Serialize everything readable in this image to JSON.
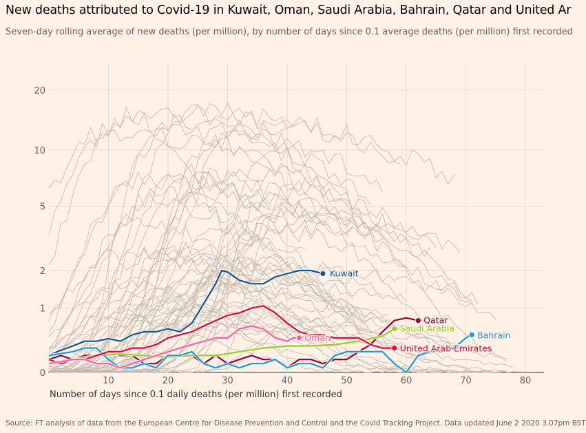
{
  "title": "New deaths attributed to Covid-19 in Kuwait, Oman, Saudi Arabia, Bahrain, Qatar and United Ar",
  "subtitle": "Seven-day rolling average of new deaths (per million), by number of days since 0.1 average deaths (per million) first recorded",
  "source": "Source: FT analysis of data from the European Centre for Disease Prevention and Control and the Covid Tracking Project. Data updated June 2 2020 3.07pm BST",
  "chart_data": {
    "type": "line",
    "title": "New deaths attributed to Covid-19 in Kuwait, Oman, Saudi Arabia, Bahrain, Qatar and United Ar",
    "xlabel": "Number of days since 0.1 daily deaths (per million) first recorded",
    "ylabel": "",
    "xlim": [
      0,
      84
    ],
    "ylim": [
      0,
      27
    ],
    "yscale": "log(1+y)",
    "x_ticks": [
      10,
      20,
      30,
      40,
      50,
      60,
      70,
      80
    ],
    "y_ticks": [
      0,
      1,
      2,
      5,
      10,
      20
    ],
    "y_tick_labels": [
      "0",
      "1",
      "2",
      "5",
      "10",
      "20"
    ],
    "grid": true,
    "legend": "inline labels at line ends",
    "colors": {
      "background": "#fff1e5",
      "other_countries": "#c0b9b0",
      "Kuwait": "#0f5499",
      "Qatar": "#96002f",
      "Saudi Arabia": "#96cc28",
      "Bahrain": "#1a9ad9",
      "United Arab Emirates": "#e8003c",
      "Oman": "#ff5fa0"
    },
    "series": [
      {
        "name": "Kuwait",
        "color": "#0f5499",
        "x": [
          0,
          2,
          4,
          6,
          8,
          10,
          12,
          14,
          16,
          18,
          20,
          22,
          24,
          26,
          28,
          29,
          30,
          32,
          34,
          36,
          38,
          40,
          42,
          44,
          46
        ],
        "y": [
          0.2,
          0.27,
          0.33,
          0.4,
          0.4,
          0.44,
          0.4,
          0.5,
          0.55,
          0.55,
          0.6,
          0.55,
          0.7,
          1.1,
          1.6,
          2.0,
          1.95,
          1.7,
          1.6,
          1.6,
          1.8,
          1.9,
          2.0,
          2.0,
          1.9
        ]
      },
      {
        "name": "Qatar",
        "color": "#96002f",
        "x": [
          0,
          2,
          4,
          6,
          8,
          10,
          12,
          14,
          16,
          18,
          20,
          22,
          24,
          26,
          28,
          30,
          32,
          34,
          36,
          38,
          40,
          42,
          44,
          46,
          48,
          50,
          52,
          54,
          56,
          58,
          60,
          62
        ],
        "y": [
          0.15,
          0.2,
          0.15,
          0.2,
          0.2,
          0.25,
          0.2,
          0.2,
          0.1,
          0.1,
          0.2,
          0.2,
          0.2,
          0.1,
          0.2,
          0.1,
          0.15,
          0.2,
          0.15,
          0.15,
          0.05,
          0.15,
          0.15,
          0.1,
          0.15,
          0.15,
          0.25,
          0.35,
          0.55,
          0.75,
          0.8,
          0.75
        ]
      },
      {
        "name": "Saudi Arabia",
        "color": "#96cc28",
        "x": [
          0,
          4,
          8,
          12,
          16,
          20,
          24,
          28,
          32,
          36,
          40,
          44,
          48,
          52,
          56,
          58
        ],
        "y": [
          0.1,
          0.15,
          0.2,
          0.22,
          0.2,
          0.18,
          0.2,
          0.2,
          0.25,
          0.3,
          0.33,
          0.33,
          0.35,
          0.4,
          0.48,
          0.6
        ]
      },
      {
        "name": "Bahrain",
        "color": "#1a9ad9",
        "x": [
          0,
          4,
          6,
          8,
          10,
          12,
          14,
          16,
          18,
          20,
          22,
          24,
          26,
          28,
          30,
          32,
          34,
          36,
          38,
          40,
          42,
          44,
          46,
          48,
          50,
          52,
          54,
          56,
          58,
          60,
          62,
          64,
          66,
          68,
          70,
          71
        ],
        "y": [
          0.2,
          0.25,
          0.3,
          0.3,
          0.15,
          0.05,
          0.05,
          0.1,
          0.05,
          0.2,
          0.2,
          0.25,
          0.1,
          0.05,
          0.1,
          0.05,
          0.1,
          0.1,
          0.15,
          0.05,
          0.1,
          0.1,
          0.05,
          0.2,
          0.25,
          0.25,
          0.25,
          0.25,
          0.1,
          0.0,
          0.2,
          0.25,
          0.25,
          0.3,
          0.45,
          0.5
        ]
      },
      {
        "name": "United Arab Emirates",
        "color": "#e8003c",
        "x": [
          0,
          2,
          4,
          6,
          8,
          10,
          12,
          14,
          16,
          18,
          20,
          22,
          24,
          26,
          28,
          30,
          32,
          34,
          36,
          38,
          40,
          42,
          44,
          46,
          48,
          50,
          52,
          54,
          56,
          58
        ],
        "y": [
          0.15,
          0.1,
          0.15,
          0.15,
          0.2,
          0.25,
          0.25,
          0.3,
          0.3,
          0.35,
          0.45,
          0.5,
          0.55,
          0.65,
          0.75,
          0.85,
          0.9,
          1.0,
          1.05,
          0.9,
          0.7,
          0.55,
          0.5,
          0.5,
          0.45,
          0.45,
          0.45,
          0.35,
          0.3,
          0.3
        ]
      },
      {
        "name": "Oman",
        "color": "#ff5fa0",
        "x": [
          0,
          4,
          6,
          8,
          10,
          12,
          14,
          16,
          18,
          20,
          22,
          24,
          26,
          28,
          30,
          32,
          34,
          36,
          38,
          40,
          41,
          42
        ],
        "y": [
          0.1,
          0.15,
          0.15,
          0.1,
          0.1,
          0.05,
          0.1,
          0.15,
          0.2,
          0.25,
          0.3,
          0.35,
          0.4,
          0.45,
          0.45,
          0.6,
          0.65,
          0.6,
          0.45,
          0.4,
          0.45,
          0.45
        ]
      }
    ]
  }
}
